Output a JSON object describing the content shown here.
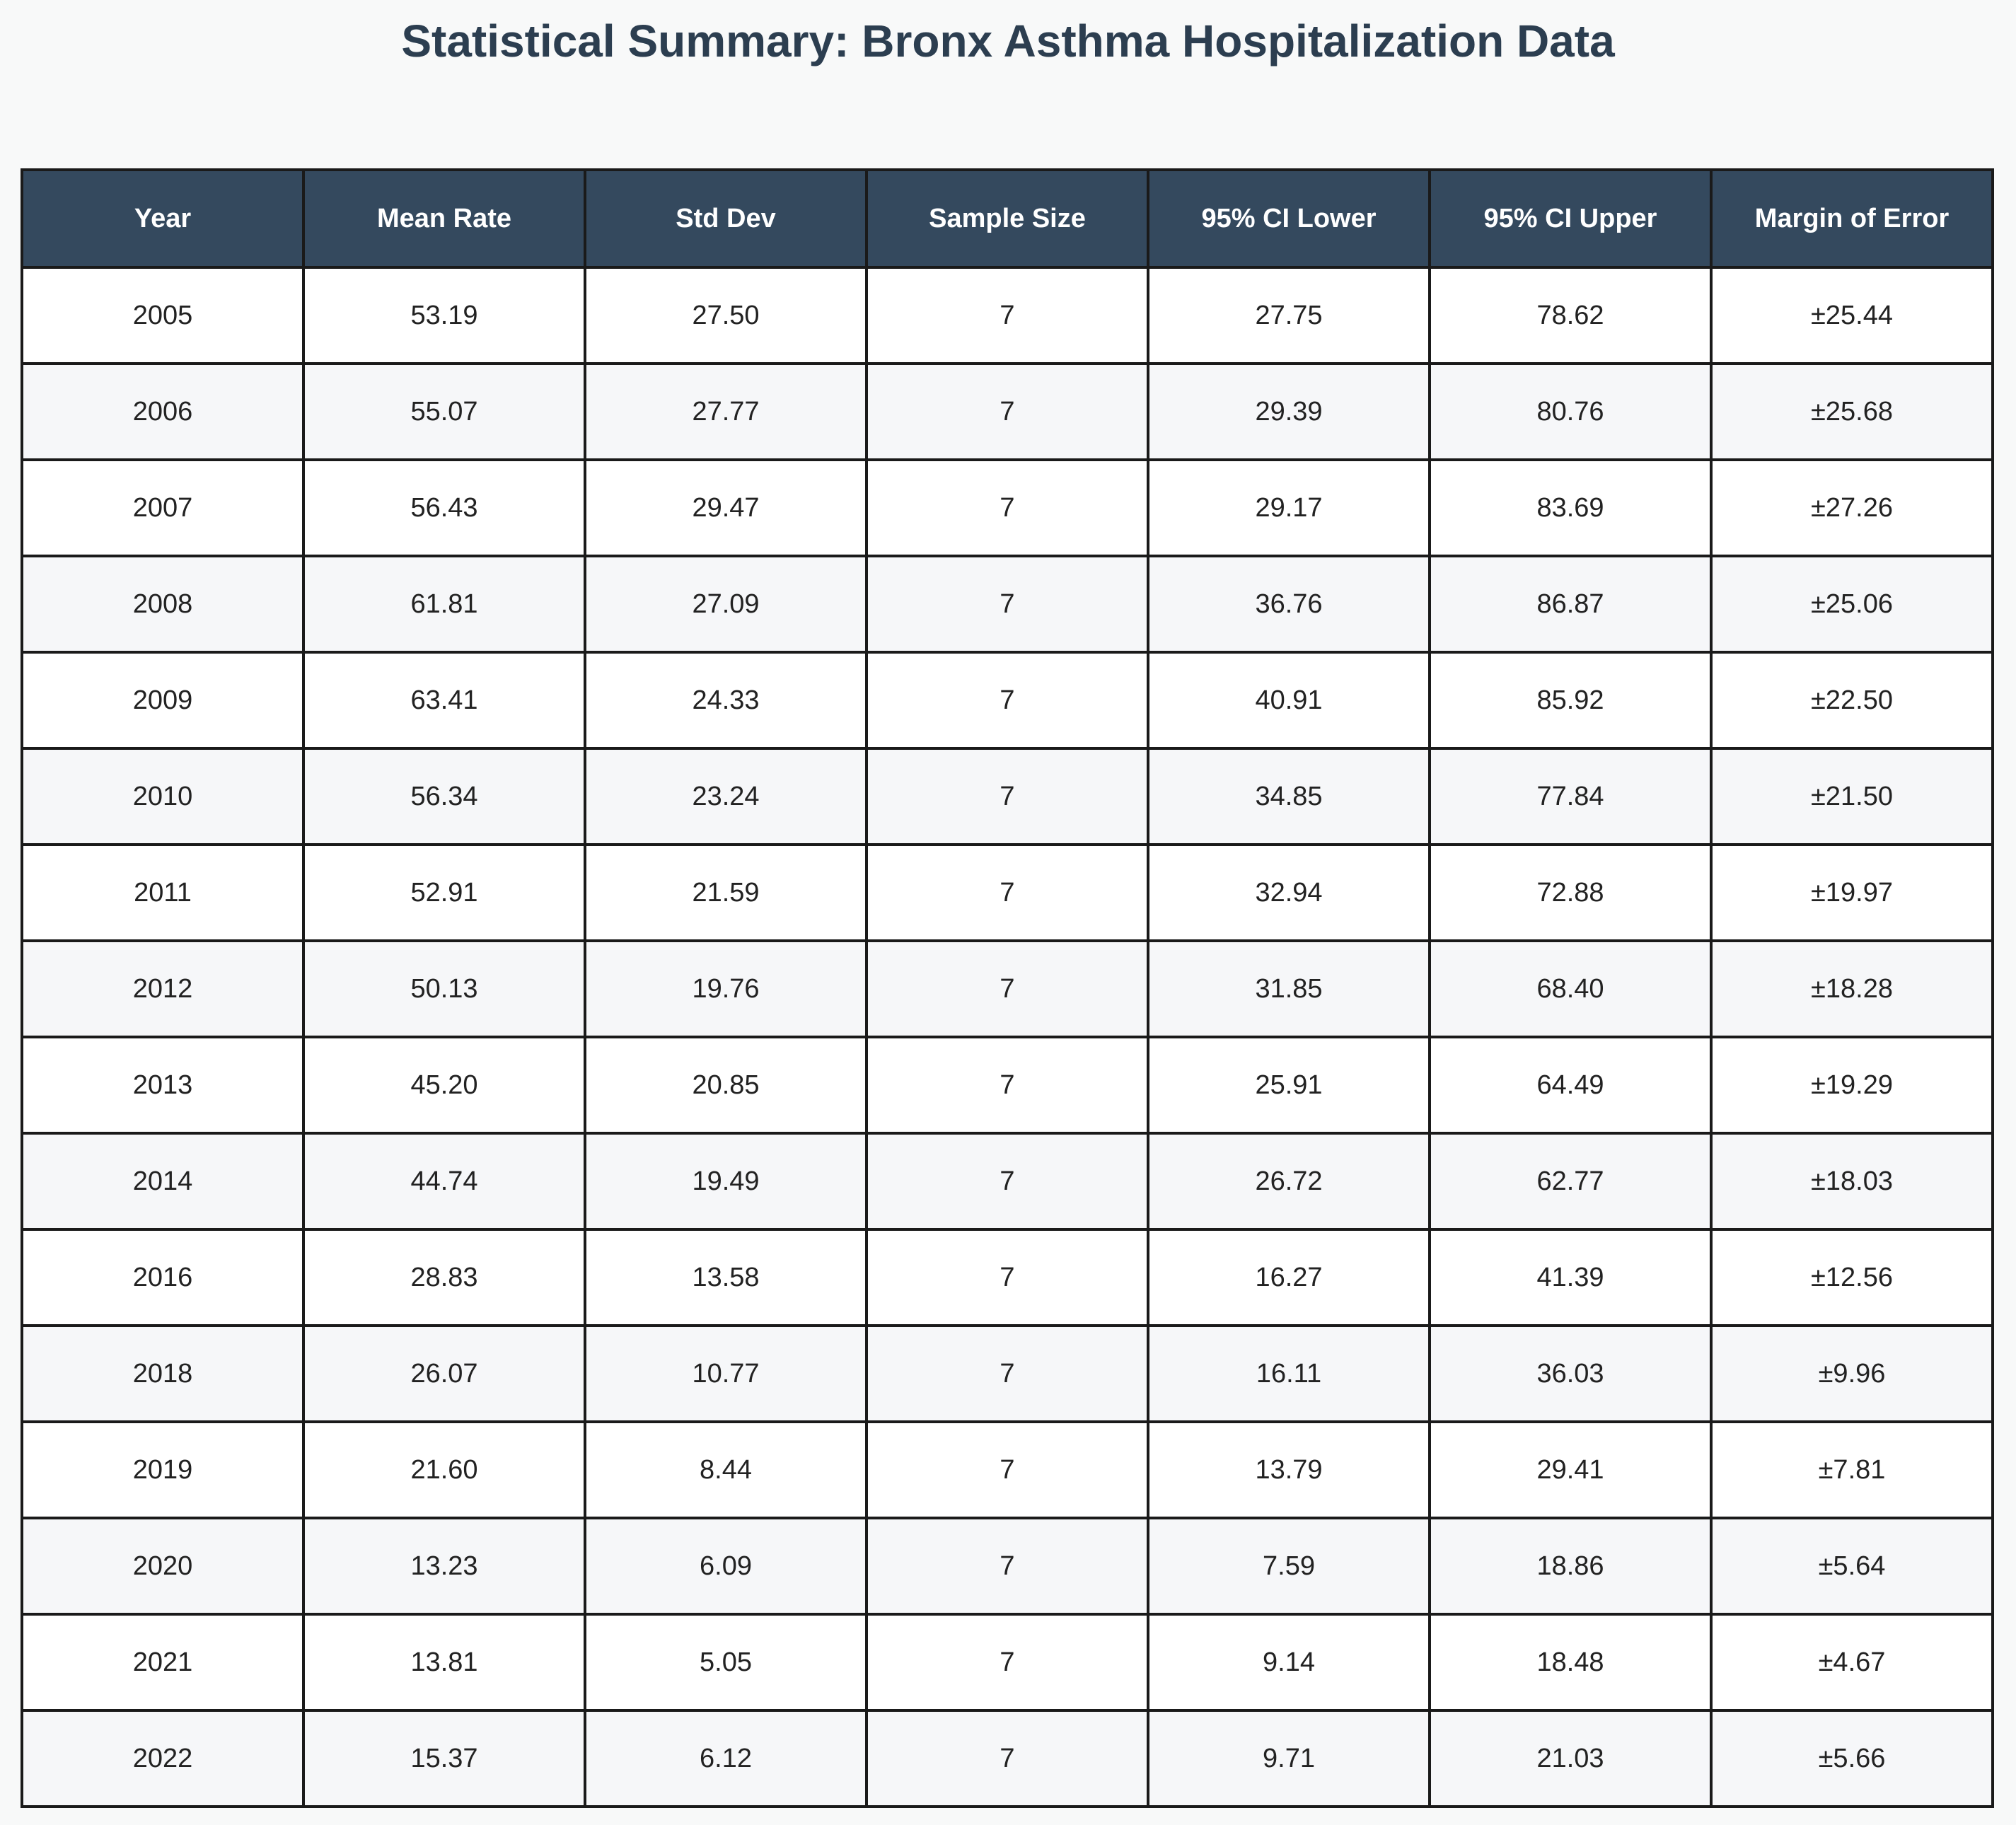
{
  "chart_data": {
    "type": "table",
    "title": "Statistical Summary: Bronx Asthma Hospitalization Data",
    "columns": [
      "Year",
      "Mean Rate",
      "Std Dev",
      "Sample Size",
      "95% CI Lower",
      "95% CI Upper",
      "Margin of Error"
    ],
    "rows": [
      [
        "2005",
        "53.19",
        "27.50",
        "7",
        "27.75",
        "78.62",
        "±25.44"
      ],
      [
        "2006",
        "55.07",
        "27.77",
        "7",
        "29.39",
        "80.76",
        "±25.68"
      ],
      [
        "2007",
        "56.43",
        "29.47",
        "7",
        "29.17",
        "83.69",
        "±27.26"
      ],
      [
        "2008",
        "61.81",
        "27.09",
        "7",
        "36.76",
        "86.87",
        "±25.06"
      ],
      [
        "2009",
        "63.41",
        "24.33",
        "7",
        "40.91",
        "85.92",
        "±22.50"
      ],
      [
        "2010",
        "56.34",
        "23.24",
        "7",
        "34.85",
        "77.84",
        "±21.50"
      ],
      [
        "2011",
        "52.91",
        "21.59",
        "7",
        "32.94",
        "72.88",
        "±19.97"
      ],
      [
        "2012",
        "50.13",
        "19.76",
        "7",
        "31.85",
        "68.40",
        "±18.28"
      ],
      [
        "2013",
        "45.20",
        "20.85",
        "7",
        "25.91",
        "64.49",
        "±19.29"
      ],
      [
        "2014",
        "44.74",
        "19.49",
        "7",
        "26.72",
        "62.77",
        "±18.03"
      ],
      [
        "2016",
        "28.83",
        "13.58",
        "7",
        "16.27",
        "41.39",
        "±12.56"
      ],
      [
        "2018",
        "26.07",
        "10.77",
        "7",
        "16.11",
        "36.03",
        "±9.96"
      ],
      [
        "2019",
        "21.60",
        "8.44",
        "7",
        "13.79",
        "29.41",
        "±7.81"
      ],
      [
        "2020",
        "13.23",
        "6.09",
        "7",
        "7.59",
        "18.86",
        "±5.64"
      ],
      [
        "2021",
        "13.81",
        "5.05",
        "7",
        "9.14",
        "18.48",
        "±4.67"
      ],
      [
        "2022",
        "15.37",
        "6.12",
        "7",
        "9.71",
        "21.03",
        "±5.66"
      ]
    ],
    "colors": {
      "header_bg": "#34495e",
      "header_text": "#ffffff",
      "title_text": "#2c3e50",
      "row_alt_bg": "#f6f7f9",
      "border": "#1a1a1a"
    }
  }
}
